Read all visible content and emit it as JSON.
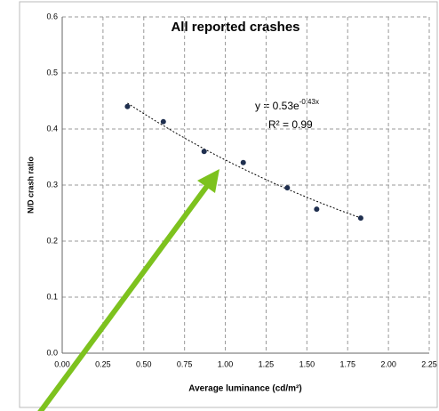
{
  "chart_data": {
    "type": "scatter",
    "title": "All reported crashes",
    "x_label": "Average luminance (cd/m²)",
    "y_label": "N/D crash ratio",
    "x": [
      0.4,
      0.62,
      0.87,
      1.11,
      1.38,
      1.56,
      1.83
    ],
    "values": [
      0.44,
      0.413,
      0.36,
      0.34,
      0.295,
      0.257,
      0.241
    ],
    "color": "#1f2f4f",
    "xlim": [
      0,
      2.25
    ],
    "xticks": [
      {
        "value": 0,
        "label": "0.00"
      },
      {
        "value": 0.25,
        "label": "0.25"
      },
      {
        "value": 0.5,
        "label": "0.50"
      },
      {
        "value": 0.75,
        "label": "0.75"
      },
      {
        "value": 1,
        "label": "1.00"
      },
      {
        "value": 1.25,
        "label": "1.25"
      },
      {
        "value": 1.5,
        "label": "1.50"
      },
      {
        "value": 1.75,
        "label": "1.75"
      },
      {
        "value": 2,
        "label": "2.00"
      },
      {
        "value": 2.25,
        "label": "2.25"
      }
    ],
    "ylim": [
      0,
      0.6
    ],
    "yticks": [
      {
        "value": 0,
        "label": "0.0"
      },
      0.1,
      0.2,
      0.3,
      0.4,
      0.5,
      0.6
    ],
    "grid": true,
    "trendline": {
      "a": 0.53,
      "k": -0.43
    },
    "equation": {
      "base": "y = 0.53e",
      "exponent": "-0.43x"
    },
    "r_squared": "R² = 0.99"
  }
}
